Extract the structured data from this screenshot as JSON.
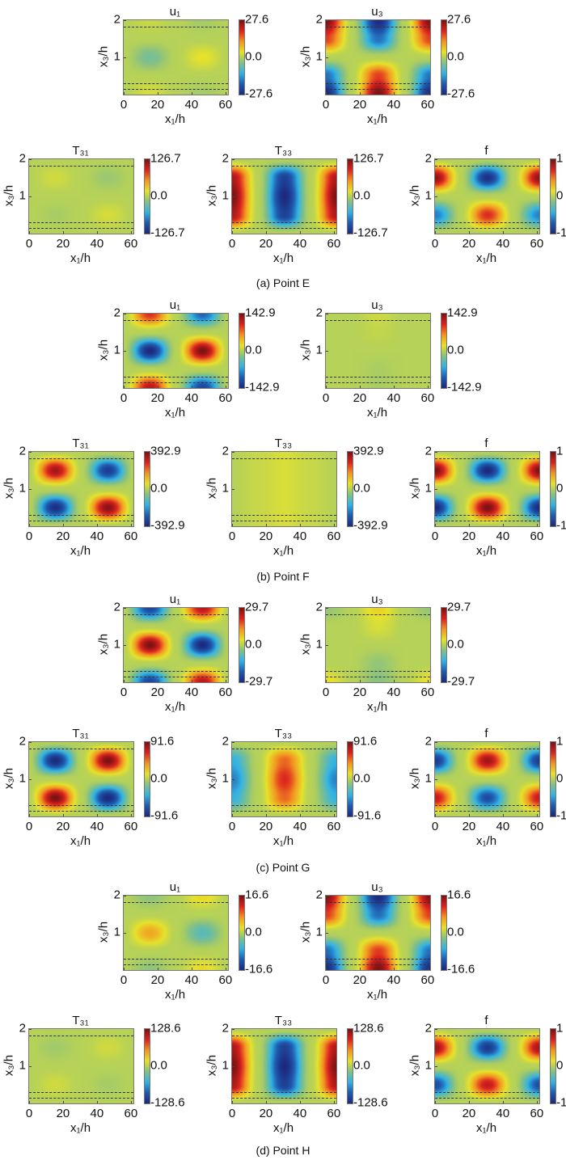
{
  "chart_data": {
    "type": "heatmap",
    "axes": {
      "xlabel": "x₁/h",
      "ylabel": "x₃/h",
      "x_ticks": [
        0,
        20,
        40,
        60
      ],
      "x_tick_labels": [
        "0",
        "20",
        "40",
        "60"
      ],
      "y_ticks": [
        1,
        2
      ],
      "y_tick_labels": [
        "1",
        "2"
      ],
      "xlim": [
        0,
        61.5
      ],
      "ylim": [
        0,
        2
      ],
      "grid": false,
      "colormap": "jet",
      "layer_lines_y": [
        1.83,
        0.3,
        0.15
      ],
      "grid_x": [
        0,
        15.5,
        31,
        46.5,
        62
      ],
      "grid_y": [
        2,
        1.5,
        1,
        0.5,
        0
      ]
    },
    "colormap_colors": [
      "#1c2a7e",
      "#1f5cb0",
      "#33b4e4",
      "#86c184",
      "#e6e22c",
      "#f39521",
      "#dc2420",
      "#7d1212"
    ],
    "captions": [
      "(a) Point E",
      "(b) Point F",
      "(c) Point G",
      "(d) Point H"
    ],
    "panels": [
      {
        "title": "u₁",
        "clim": [
          -27.6,
          27.6
        ],
        "colorbar_labels": [
          "27.6",
          "0.0",
          "-27.6"
        ],
        "values": [
          [
            0,
            1.4,
            0,
            -1.4,
            0
          ],
          [
            0,
            0,
            0,
            0,
            0
          ],
          [
            0,
            -5.5,
            0,
            4.1,
            0
          ],
          [
            0,
            0,
            0,
            0,
            0
          ],
          [
            0,
            2.8,
            0,
            -1.4,
            0
          ]
        ]
      },
      {
        "title": "u₃",
        "clim": [
          -27.6,
          27.6
        ],
        "colorbar_labels": [
          "27.6",
          "0.0",
          "-27.6"
        ],
        "values": [
          [
            27.6,
            0,
            -27.6,
            0,
            27.6
          ],
          [
            18,
            0,
            -18,
            0,
            18
          ],
          [
            0,
            0,
            0,
            0,
            0
          ],
          [
            -18,
            0,
            18,
            0,
            -18
          ],
          [
            -27.6,
            0,
            27.6,
            0,
            -27.6
          ]
        ]
      },
      {
        "title": "T₃₁",
        "clim": [
          -126.7,
          126.7
        ],
        "colorbar_labels": [
          "126.7",
          "0.0",
          "-126.7"
        ],
        "values": [
          [
            0,
            0,
            0,
            0,
            0
          ],
          [
            0,
            10,
            0,
            -10,
            0
          ],
          [
            0,
            0,
            0,
            0,
            0
          ],
          [
            0,
            -5,
            0,
            12,
            0
          ],
          [
            0,
            0,
            0,
            0,
            0
          ]
        ]
      },
      {
        "title": "T₃₃",
        "clim": [
          -126.7,
          126.7
        ],
        "colorbar_labels": [
          "126.7",
          "0.0",
          "-126.7"
        ],
        "values": [
          [
            0,
            0,
            0,
            0,
            0
          ],
          [
            110,
            0,
            -110,
            0,
            110
          ],
          [
            126.7,
            0,
            -126.7,
            0,
            126.7
          ],
          [
            110,
            0,
            -110,
            0,
            110
          ],
          [
            0,
            0,
            0,
            0,
            0
          ]
        ]
      },
      {
        "title": "f",
        "clim": [
          -1,
          1
        ],
        "colorbar_labels": [
          "1",
          "0",
          "-1"
        ],
        "values": [
          [
            0,
            0,
            0,
            0,
            0
          ],
          [
            0.95,
            0,
            -0.95,
            0,
            0.95
          ],
          [
            0,
            0,
            0,
            0,
            0
          ],
          [
            -0.6,
            0,
            0.7,
            0,
            -0.6
          ],
          [
            0,
            0,
            0,
            0,
            0
          ]
        ]
      },
      {
        "title": "u₁",
        "clim": [
          -142.9,
          142.9
        ],
        "colorbar_labels": [
          "142.9",
          "0.0",
          "-142.9"
        ],
        "values": [
          [
            0,
            100,
            0,
            -100,
            0
          ],
          [
            0,
            0,
            0,
            0,
            0
          ],
          [
            0,
            -142.9,
            0,
            142.9,
            0
          ],
          [
            0,
            0,
            0,
            0,
            0
          ],
          [
            0,
            120,
            0,
            -120,
            0
          ]
        ]
      },
      {
        "title": "u₃",
        "clim": [
          -142.9,
          142.9
        ],
        "colorbar_labels": [
          "142.9",
          "0.0",
          "-142.9"
        ],
        "values": [
          [
            0,
            0,
            10,
            0,
            0
          ],
          [
            0,
            0,
            5,
            0,
            0
          ],
          [
            0,
            0,
            0,
            0,
            0
          ],
          [
            0,
            0,
            -5,
            0,
            0
          ],
          [
            0,
            0,
            -5,
            0,
            0
          ]
        ]
      },
      {
        "title": "T₃₁",
        "clim": [
          -392.9,
          392.9
        ],
        "colorbar_labels": [
          "392.9",
          "0.0",
          "-392.9"
        ],
        "values": [
          [
            0,
            0,
            0,
            0,
            0
          ],
          [
            0,
            350,
            0,
            -350,
            0
          ],
          [
            0,
            0,
            0,
            0,
            0
          ],
          [
            0,
            -380,
            0,
            380,
            0
          ],
          [
            0,
            0,
            0,
            0,
            0
          ]
        ]
      },
      {
        "title": "T₃₃",
        "clim": [
          -392.9,
          392.9
        ],
        "colorbar_labels": [
          "392.9",
          "0.0",
          "-392.9"
        ],
        "values": [
          [
            0,
            20,
            40,
            20,
            0
          ],
          [
            0,
            20,
            40,
            20,
            0
          ],
          [
            0,
            20,
            40,
            20,
            0
          ],
          [
            0,
            20,
            40,
            20,
            0
          ],
          [
            0,
            20,
            40,
            20,
            0
          ]
        ]
      },
      {
        "title": "f",
        "clim": [
          -1,
          1
        ],
        "colorbar_labels": [
          "1",
          "0",
          "-1"
        ],
        "values": [
          [
            0,
            0,
            0,
            0,
            0
          ],
          [
            1,
            0,
            -1,
            0,
            1
          ],
          [
            0,
            0,
            0,
            0,
            0
          ],
          [
            -1,
            0,
            1,
            0,
            -1
          ],
          [
            0,
            0,
            0,
            0,
            0
          ]
        ]
      },
      {
        "title": "u₁",
        "clim": [
          -29.7,
          29.7
        ],
        "colorbar_labels": [
          "29.7",
          "0.0",
          "-29.7"
        ],
        "values": [
          [
            0,
            -25,
            0,
            25,
            0
          ],
          [
            0,
            0,
            0,
            0,
            0
          ],
          [
            0,
            29.7,
            0,
            -29.7,
            0
          ],
          [
            0,
            0,
            0,
            0,
            0
          ],
          [
            0,
            -25,
            0,
            25,
            0
          ]
        ]
      },
      {
        "title": "u₃",
        "clim": [
          -29.7,
          29.7
        ],
        "colorbar_labels": [
          "29.7",
          "0.0",
          "-29.7"
        ],
        "values": [
          [
            -3,
            0,
            6,
            0,
            -3
          ],
          [
            0,
            0,
            3,
            0,
            0
          ],
          [
            0,
            0,
            0,
            0,
            0
          ],
          [
            0,
            0,
            -3,
            0,
            0
          ],
          [
            5,
            0,
            -4,
            0,
            5
          ]
        ]
      },
      {
        "title": "T₃₁",
        "clim": [
          -91.6,
          91.6
        ],
        "colorbar_labels": [
          "91.6",
          "0.0",
          "-91.6"
        ],
        "values": [
          [
            0,
            0,
            0,
            0,
            0
          ],
          [
            0,
            -91.6,
            0,
            91.6,
            0
          ],
          [
            0,
            0,
            0,
            0,
            0
          ],
          [
            0,
            91.6,
            0,
            -91.6,
            0
          ],
          [
            0,
            0,
            0,
            0,
            0
          ]
        ]
      },
      {
        "title": "T₃₃",
        "clim": [
          -91.6,
          91.6
        ],
        "colorbar_labels": [
          "91.6",
          "0.0",
          "-91.6"
        ],
        "values": [
          [
            0,
            0,
            0,
            0,
            0
          ],
          [
            -40,
            0,
            50,
            0,
            -40
          ],
          [
            -55,
            0,
            65,
            0,
            -55
          ],
          [
            -40,
            0,
            50,
            0,
            -40
          ],
          [
            0,
            0,
            0,
            0,
            0
          ]
        ]
      },
      {
        "title": "f",
        "clim": [
          -1,
          1
        ],
        "colorbar_labels": [
          "1",
          "0",
          "-1"
        ],
        "values": [
          [
            0,
            0,
            0,
            0,
            0
          ],
          [
            -0.9,
            0,
            0.9,
            0,
            -0.9
          ],
          [
            0,
            0,
            0,
            0,
            0
          ],
          [
            0.8,
            0,
            -0.8,
            0,
            0.8
          ],
          [
            0,
            0,
            0,
            0,
            0
          ]
        ]
      },
      {
        "title": "u₁",
        "clim": [
          -16.6,
          16.6
        ],
        "colorbar_labels": [
          "16.6",
          "0.0",
          "-16.6"
        ],
        "values": [
          [
            0,
            -2,
            0,
            3,
            0
          ],
          [
            0,
            0,
            0,
            0,
            0
          ],
          [
            0,
            6,
            0,
            -5,
            0
          ],
          [
            0,
            0,
            0,
            0,
            0
          ],
          [
            0,
            -2,
            0,
            3,
            0
          ]
        ]
      },
      {
        "title": "u₃",
        "clim": [
          -16.6,
          16.6
        ],
        "colorbar_labels": [
          "16.6",
          "0.0",
          "-16.6"
        ],
        "values": [
          [
            16.6,
            0,
            -16.6,
            0,
            16.6
          ],
          [
            11,
            0,
            -11,
            0,
            11
          ],
          [
            0,
            0,
            0,
            0,
            0
          ],
          [
            -11,
            0,
            11,
            0,
            -11
          ],
          [
            -16.6,
            0,
            16.6,
            0,
            -16.6
          ]
        ]
      },
      {
        "title": "T₃₁",
        "clim": [
          -128.6,
          128.6
        ],
        "colorbar_labels": [
          "128.6",
          "0.0",
          "-128.6"
        ],
        "values": [
          [
            0,
            0,
            0,
            0,
            0
          ],
          [
            0,
            -8,
            0,
            10,
            0
          ],
          [
            0,
            0,
            0,
            0,
            0
          ],
          [
            0,
            10,
            0,
            -6,
            0
          ],
          [
            0,
            0,
            0,
            0,
            0
          ]
        ]
      },
      {
        "title": "T₃₃",
        "clim": [
          -128.6,
          128.6
        ],
        "colorbar_labels": [
          "128.6",
          "0.0",
          "-128.6"
        ],
        "values": [
          [
            0,
            0,
            0,
            0,
            0
          ],
          [
            112,
            0,
            -112,
            0,
            112
          ],
          [
            128.6,
            0,
            -128.6,
            0,
            128.6
          ],
          [
            112,
            0,
            -112,
            0,
            112
          ],
          [
            0,
            0,
            0,
            0,
            0
          ]
        ]
      },
      {
        "title": "f",
        "clim": [
          -1,
          1
        ],
        "colorbar_labels": [
          "1",
          "0",
          "-1"
        ],
        "values": [
          [
            0,
            0,
            0,
            0,
            0
          ],
          [
            0.9,
            0,
            -0.9,
            0,
            0.9
          ],
          [
            0,
            0,
            0,
            0,
            0
          ],
          [
            -0.8,
            0,
            0.8,
            0,
            -0.8
          ],
          [
            0,
            0,
            0,
            0,
            0
          ]
        ]
      }
    ]
  }
}
